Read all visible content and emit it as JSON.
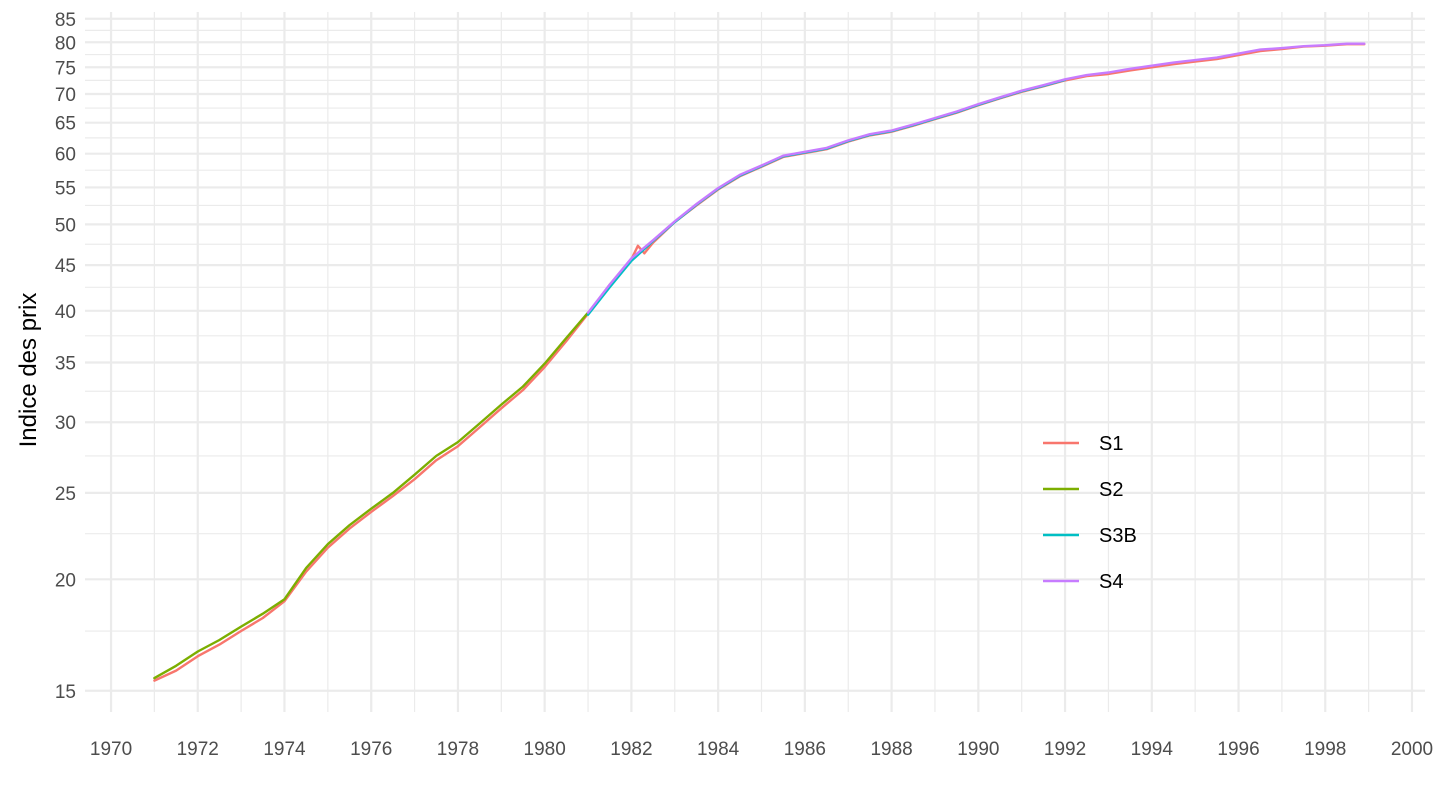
{
  "chart_data": {
    "type": "line",
    "title": "",
    "xlabel": "",
    "ylabel": "Indice des prix",
    "yscale": "log",
    "xlim": [
      1969.4,
      2000.3
    ],
    "ylim": [
      14.2,
      86.5
    ],
    "x_ticks": [
      1970,
      1972,
      1974,
      1976,
      1978,
      1980,
      1982,
      1984,
      1986,
      1988,
      1990,
      1992,
      1994,
      1996,
      1998,
      2000
    ],
    "y_ticks": [
      15,
      20,
      25,
      30,
      35,
      40,
      45,
      50,
      55,
      60,
      65,
      70,
      75,
      80,
      85
    ],
    "grid": true,
    "legend_position": "right",
    "series": [
      {
        "name": "S1",
        "color": "#F8766D",
        "points": [
          [
            1971.0,
            15.4
          ],
          [
            1971.5,
            15.8
          ],
          [
            1972.0,
            16.4
          ],
          [
            1972.5,
            16.9
          ],
          [
            1973.0,
            17.5
          ],
          [
            1973.5,
            18.1
          ],
          [
            1974.0,
            18.9
          ],
          [
            1974.5,
            20.4
          ],
          [
            1975.0,
            21.7
          ],
          [
            1975.5,
            22.8
          ],
          [
            1976.0,
            23.8
          ],
          [
            1976.5,
            24.8
          ],
          [
            1977.0,
            25.9
          ],
          [
            1977.5,
            27.2
          ],
          [
            1978.0,
            28.2
          ],
          [
            1978.5,
            29.6
          ],
          [
            1979.0,
            31.1
          ],
          [
            1979.5,
            32.6
          ],
          [
            1980.0,
            34.6
          ],
          [
            1980.5,
            37.0
          ],
          [
            1981.0,
            39.7
          ],
          [
            1981.5,
            42.8
          ],
          [
            1982.0,
            45.7
          ],
          [
            1982.15,
            47.3
          ],
          [
            1982.3,
            46.4
          ],
          [
            1982.5,
            47.7
          ],
          [
            1983.0,
            50.3
          ],
          [
            1983.5,
            52.5
          ],
          [
            1984.0,
            54.7
          ],
          [
            1984.5,
            56.6
          ],
          [
            1985.0,
            58.0
          ],
          [
            1985.5,
            59.5
          ],
          [
            1986.0,
            60.1
          ],
          [
            1986.5,
            60.7
          ],
          [
            1987.0,
            61.9
          ],
          [
            1987.5,
            62.9
          ],
          [
            1988.0,
            63.5
          ],
          [
            1988.5,
            64.5
          ],
          [
            1989.0,
            65.6
          ],
          [
            1989.5,
            66.7
          ],
          [
            1990.0,
            68.0
          ],
          [
            1990.5,
            69.2
          ],
          [
            1991.0,
            70.4
          ],
          [
            1991.5,
            71.4
          ],
          [
            1992.0,
            72.5
          ],
          [
            1992.5,
            73.3
          ],
          [
            1993.0,
            73.7
          ],
          [
            1993.5,
            74.4
          ],
          [
            1994.0,
            75.0
          ],
          [
            1994.5,
            75.6
          ],
          [
            1995.0,
            76.1
          ],
          [
            1995.5,
            76.6
          ],
          [
            1996.0,
            77.4
          ],
          [
            1996.5,
            78.2
          ],
          [
            1997.0,
            78.6
          ],
          [
            1997.5,
            79.1
          ],
          [
            1998.0,
            79.3
          ],
          [
            1998.5,
            79.6
          ],
          [
            1998.9,
            79.6
          ]
        ]
      },
      {
        "name": "S2",
        "color": "#7CAE00",
        "points": [
          [
            1971.0,
            15.5
          ],
          [
            1971.5,
            16.0
          ],
          [
            1972.0,
            16.6
          ],
          [
            1972.5,
            17.1
          ],
          [
            1973.0,
            17.7
          ],
          [
            1973.5,
            18.3
          ],
          [
            1974.0,
            19.0
          ],
          [
            1974.5,
            20.6
          ],
          [
            1975.0,
            21.9
          ],
          [
            1975.5,
            23.0
          ],
          [
            1976.0,
            24.0
          ],
          [
            1976.5,
            25.0
          ],
          [
            1977.0,
            26.2
          ],
          [
            1977.5,
            27.5
          ],
          [
            1978.0,
            28.5
          ],
          [
            1978.5,
            29.9
          ],
          [
            1979.0,
            31.4
          ],
          [
            1979.5,
            32.9
          ],
          [
            1980.0,
            34.9
          ],
          [
            1980.5,
            37.3
          ],
          [
            1981.0,
            39.8
          ]
        ]
      },
      {
        "name": "S3B",
        "color": "#00BFC4",
        "points": [
          [
            1981.0,
            39.6
          ],
          [
            1981.5,
            42.5
          ],
          [
            1982.0,
            45.5
          ],
          [
            1982.5,
            47.9
          ],
          [
            1983.0,
            50.3
          ],
          [
            1983.5,
            52.6
          ],
          [
            1984.0,
            54.8
          ],
          [
            1984.5,
            56.7
          ],
          [
            1985.0,
            58.1
          ],
          [
            1985.5,
            59.6
          ],
          [
            1986.0,
            60.2
          ],
          [
            1986.5,
            60.8
          ],
          [
            1987.0,
            62.0
          ],
          [
            1987.5,
            63.0
          ],
          [
            1988.0,
            63.6
          ],
          [
            1988.5,
            64.6
          ],
          [
            1989.0,
            65.7
          ],
          [
            1989.5,
            66.8
          ],
          [
            1990.0,
            68.1
          ],
          [
            1990.5,
            69.3
          ],
          [
            1991.0,
            70.5
          ],
          [
            1991.5,
            71.5
          ],
          [
            1992.0,
            72.6
          ]
        ]
      },
      {
        "name": "S4",
        "color": "#C77CFF",
        "points": [
          [
            1981.0,
            39.8
          ],
          [
            1981.5,
            42.8
          ],
          [
            1982.0,
            45.8
          ],
          [
            1982.5,
            48.0
          ],
          [
            1983.0,
            50.4
          ],
          [
            1983.5,
            52.7
          ],
          [
            1984.0,
            54.9
          ],
          [
            1984.5,
            56.8
          ],
          [
            1985.0,
            58.2
          ],
          [
            1985.5,
            59.7
          ],
          [
            1986.0,
            60.3
          ],
          [
            1986.5,
            60.9
          ],
          [
            1987.0,
            62.1
          ],
          [
            1987.5,
            63.1
          ],
          [
            1988.0,
            63.7
          ],
          [
            1988.5,
            64.7
          ],
          [
            1989.0,
            65.8
          ],
          [
            1989.5,
            66.9
          ],
          [
            1990.0,
            68.2
          ],
          [
            1990.5,
            69.4
          ],
          [
            1991.0,
            70.6
          ],
          [
            1991.5,
            71.6
          ],
          [
            1992.0,
            72.7
          ],
          [
            1992.5,
            73.5
          ],
          [
            1993.0,
            74.0
          ],
          [
            1993.5,
            74.7
          ],
          [
            1994.0,
            75.3
          ],
          [
            1994.5,
            75.9
          ],
          [
            1995.0,
            76.4
          ],
          [
            1995.5,
            76.9
          ],
          [
            1996.0,
            77.7
          ],
          [
            1996.5,
            78.5
          ],
          [
            1997.0,
            78.8
          ],
          [
            1997.5,
            79.2
          ],
          [
            1998.0,
            79.4
          ],
          [
            1998.5,
            79.7
          ],
          [
            1998.9,
            79.7
          ]
        ]
      }
    ]
  }
}
